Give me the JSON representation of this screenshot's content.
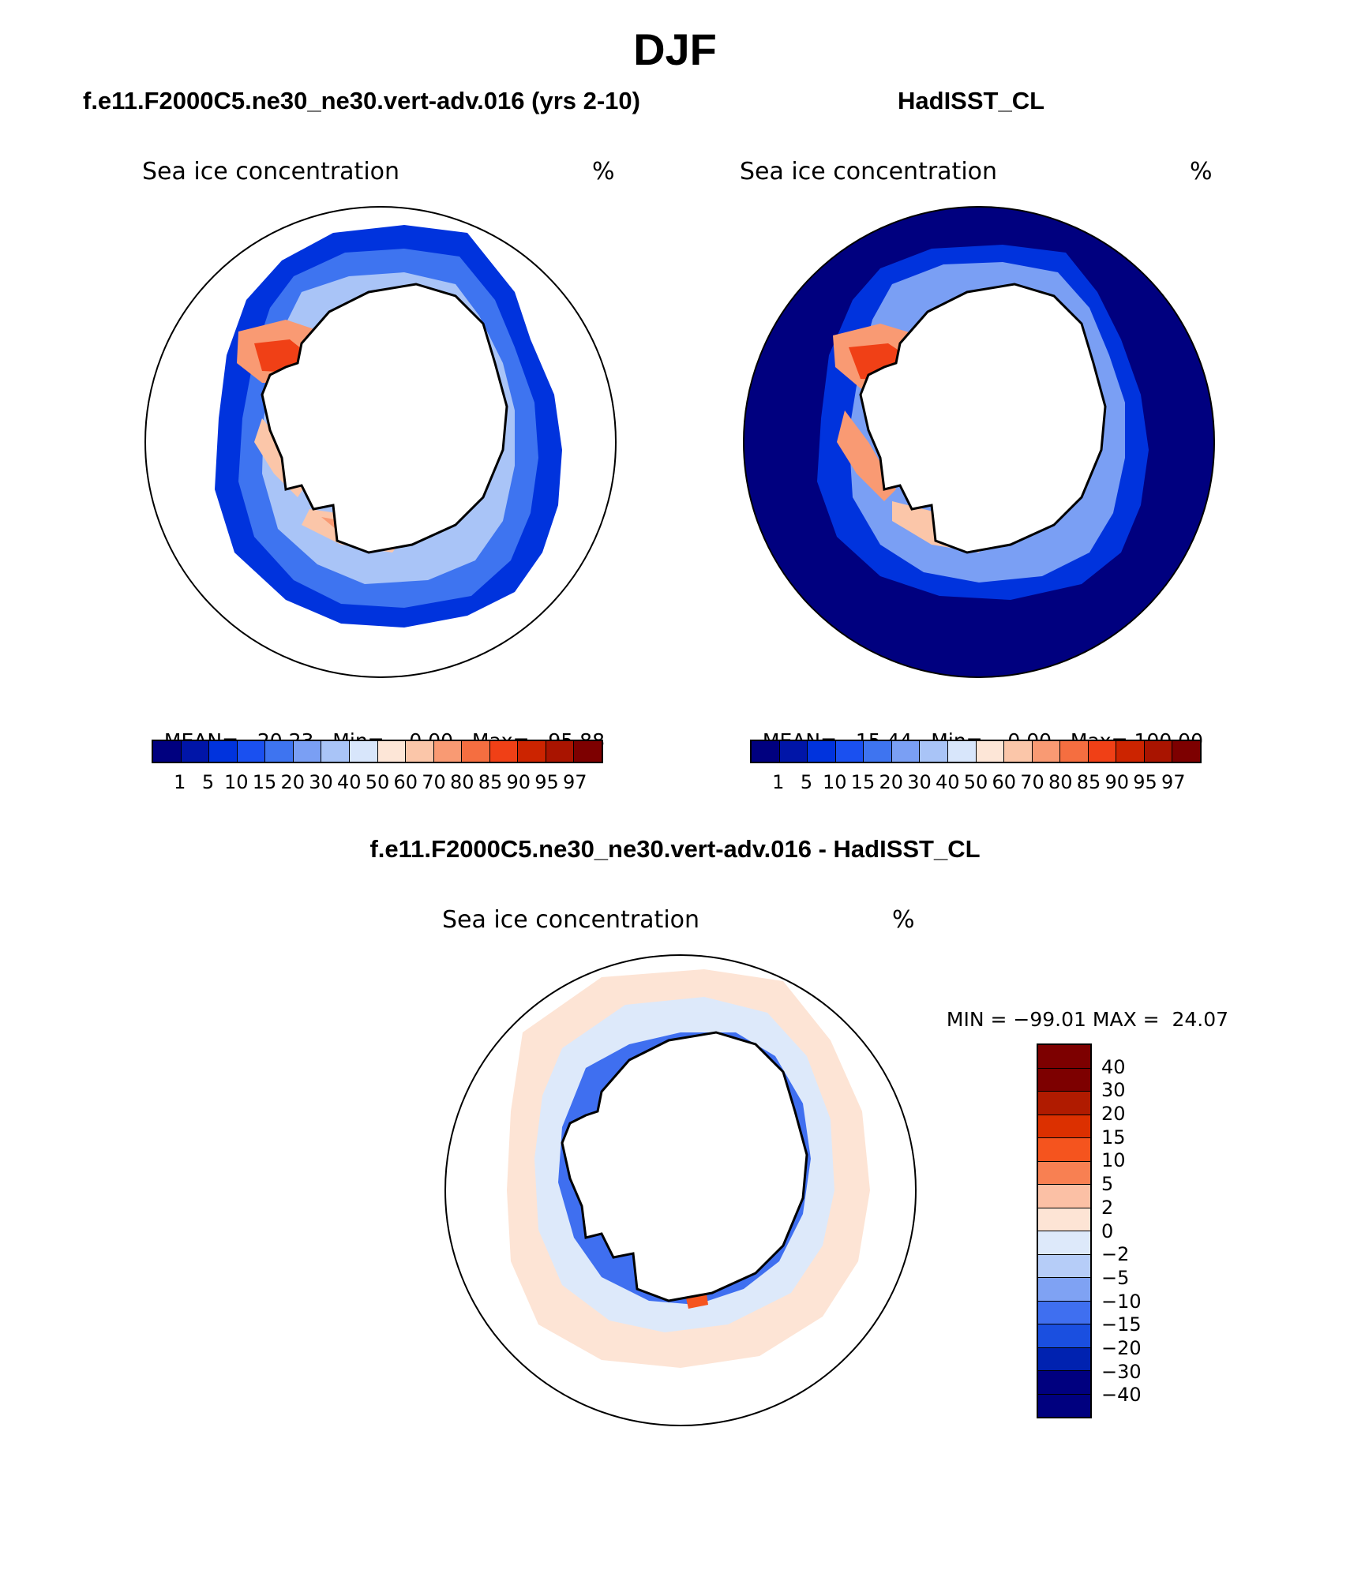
{
  "title": "DJF",
  "colors": {
    "seq": [
      "#00007f",
      "#0015a8",
      "#0033dd",
      "#1a50f0",
      "#3e74f0",
      "#7a9ff4",
      "#a9c4f7",
      "#d8e6fb",
      "#fde6d7",
      "#fbc6a9",
      "#f99a73",
      "#f56e40",
      "#f04016",
      "#cc2400",
      "#a91400",
      "#7d0000"
    ],
    "div": [
      "#7d0000",
      "#b01b00",
      "#dc3000",
      "#f5541e",
      "#f88052",
      "#fbc0a5",
      "#fde4d5",
      "#dde9fa",
      "#b6cdf8",
      "#7fa2f3",
      "#3f6ff0",
      "#1a4fe0",
      "#0022b0",
      "#00007f"
    ],
    "land": "#ffffff"
  },
  "panels": [
    {
      "title": "f.e11.F2000C5.ne30_ne30.vert-adv.016 (yrs 2-10)",
      "variable": "Sea ice concentration",
      "units": "%",
      "stats": {
        "mean_label": "MEAN=",
        "mean": "20.23",
        "min_label": "Min=",
        "min": "0.00",
        "max_label": "Max=",
        "max": "95.88"
      }
    },
    {
      "title": "HadISST_CL",
      "variable": "Sea ice concentration",
      "units": "%",
      "stats": {
        "mean_label": "MEAN=",
        "mean": "15.44",
        "min_label": "Min=",
        "min": "0.00",
        "max_label": "Max=",
        "max": "100.00"
      }
    },
    {
      "title": "f.e11.F2000C5.ne30_ne30.vert-adv.016 - HadISST_CL",
      "variable": "Sea ice concentration",
      "units": "%",
      "stats": {
        "min_label": "MIN =",
        "min": "−99.01",
        "max_label": "MAX =",
        "max": "24.07"
      }
    }
  ],
  "colorbar_levels": [
    "1",
    "5",
    "10",
    "15",
    "20",
    "30",
    "40",
    "50",
    "60",
    "70",
    "80",
    "85",
    "90",
    "95",
    "97"
  ],
  "diff_levels": [
    "40",
    "30",
    "20",
    "15",
    "10",
    "5",
    "2",
    "0",
    "−2",
    "−5",
    "−10",
    "−15",
    "−20",
    "−30",
    "−40"
  ]
}
